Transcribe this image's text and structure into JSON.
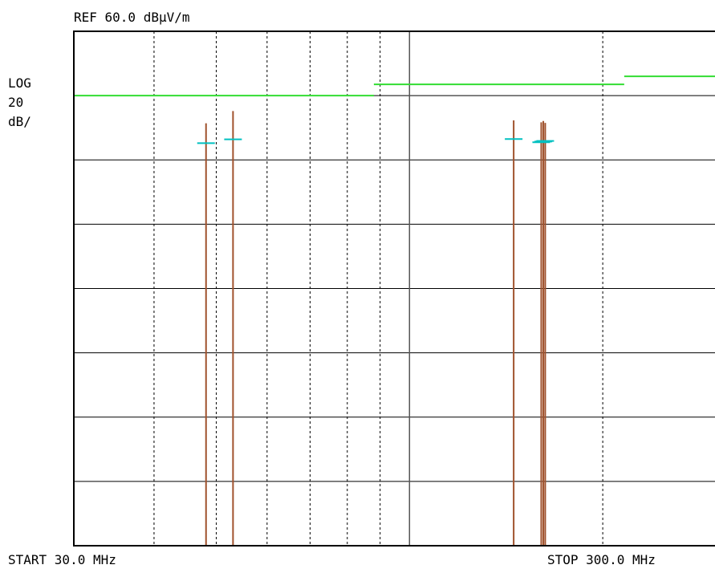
{
  "chart_data": {
    "type": "line",
    "title": "",
    "reference_label": "REF 60.0 dBµV/m",
    "scale_label": [
      "LOG",
      "20",
      "dB/"
    ],
    "start_label": "START 30.0 MHz",
    "stop_label": "STOP 300.0 MHz",
    "x_unit": "MHz",
    "y_unit": "dBµV/m",
    "xlim": [
      30,
      300
    ],
    "ylim": [
      -100,
      60
    ],
    "grid": true,
    "x_log_scale": true,
    "x_minor_gridlines": [
      40,
      50,
      60,
      70,
      80,
      90
    ],
    "x_major_gridlines": [
      100
    ],
    "x_minor_gridlines_2": [
      200
    ],
    "limit_line": {
      "color": "#33dd33",
      "segments": [
        {
          "x": [
            30,
            88
          ],
          "y": 40
        },
        {
          "x": [
            88,
            216
          ],
          "y": 43.5
        },
        {
          "x": [
            216,
            300
          ],
          "y": 46
        }
      ]
    },
    "series": [
      {
        "color": "#a0522d",
        "x": [
          48.2,
          53.1,
          145.3,
          160.4,
          161.6,
          162.7
        ],
        "values": [
          31.4,
          35.2,
          32.3,
          31.7,
          32.1,
          31.5
        ]
      },
      {
        "color": "#00c0c0",
        "x": [
          48.2,
          53.1,
          145.3,
          160.4,
          161.6,
          162.7
        ],
        "values": [
          25.2,
          26.4,
          26.5,
          25.5,
          25.7,
          25.9
        ]
      }
    ],
    "colors": {
      "grid": "#000000",
      "frame": "#000000",
      "text": "#000000"
    }
  }
}
